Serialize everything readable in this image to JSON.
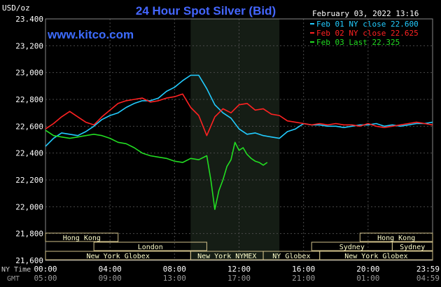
{
  "chart_data": {
    "type": "line",
    "title": "24 Hour Spot Silver (Bid)",
    "watermark": "www.kitco.com",
    "datetime": "February 03, 2022 13:16",
    "y_unit": "USD/oz",
    "ylim": [
      21.6,
      23.4
    ],
    "y_ticks": [
      "23.400",
      "23,200",
      "23,000",
      "22,800",
      "22,600",
      "22,400",
      "22,200",
      "22,000",
      "21,800",
      "21,600"
    ],
    "xlim": [
      0,
      24
    ],
    "x_ticks_ny": [
      "00:00",
      "04:00",
      "08:00",
      "12:00",
      "16:00",
      "20:00",
      "23:59"
    ],
    "x_ticks_gmt": [
      "05:00",
      "09:00",
      "13:00",
      "17:00",
      "21:00",
      "01:00",
      "04:59"
    ],
    "ny_time_label": "NY Time",
    "gmt_label": "GMT",
    "shaded_region_hours": [
      9,
      14.5
    ],
    "series": [
      {
        "name": "Feb 01 NY close 22.600",
        "color": "#22ccff",
        "x": [
          0,
          0.5,
          1,
          1.5,
          2,
          2.5,
          3,
          3.5,
          4,
          4.5,
          5,
          5.5,
          6,
          6.5,
          7,
          7.5,
          8,
          8.5,
          9,
          9.5,
          10,
          10.5,
          11,
          11.5,
          12,
          12.5,
          13,
          13.5,
          14,
          14.5,
          15,
          15.5,
          16,
          16.5,
          17,
          17.5,
          18,
          18.5,
          19,
          19.5,
          20,
          20.5,
          21,
          21.5,
          22,
          22.5,
          23,
          23.5,
          24
        ],
        "values": [
          22.45,
          22.51,
          22.55,
          22.54,
          22.53,
          22.56,
          22.6,
          22.65,
          22.68,
          22.7,
          22.74,
          22.77,
          22.79,
          22.79,
          22.81,
          22.86,
          22.89,
          22.94,
          22.98,
          22.98,
          22.88,
          22.76,
          22.7,
          22.66,
          22.58,
          22.54,
          22.55,
          22.53,
          22.52,
          22.51,
          22.56,
          22.58,
          22.62,
          22.61,
          22.61,
          22.6,
          22.6,
          22.59,
          22.6,
          22.61,
          22.61,
          22.62,
          22.6,
          22.61,
          22.6,
          22.61,
          22.62,
          22.62,
          22.63
        ]
      },
      {
        "name": "Feb 02 NY close 22.625",
        "color": "#ff2222",
        "x": [
          0,
          0.5,
          1,
          1.5,
          2,
          2.5,
          3,
          3.5,
          4,
          4.5,
          5,
          5.5,
          6,
          6.5,
          7,
          7.5,
          8,
          8.5,
          9,
          9.5,
          10,
          10.5,
          11,
          11.5,
          12,
          12.5,
          13,
          13.5,
          14,
          14.5,
          15,
          15.5,
          16,
          16.5,
          17,
          17.5,
          18,
          18.5,
          19,
          19.5,
          20,
          20.5,
          21,
          21.5,
          22,
          22.5,
          23,
          23.5,
          24
        ],
        "values": [
          22.58,
          22.62,
          22.67,
          22.71,
          22.67,
          22.63,
          22.61,
          22.67,
          22.72,
          22.77,
          22.79,
          22.8,
          22.81,
          22.78,
          22.79,
          22.81,
          22.82,
          22.84,
          22.74,
          22.68,
          22.53,
          22.67,
          22.73,
          22.7,
          22.76,
          22.77,
          22.72,
          22.73,
          22.69,
          22.68,
          22.64,
          22.63,
          22.62,
          22.61,
          22.62,
          22.61,
          22.62,
          22.61,
          22.61,
          22.6,
          22.62,
          22.6,
          22.59,
          22.6,
          22.61,
          22.62,
          22.63,
          22.62,
          22.61
        ]
      },
      {
        "name": "Feb 03 Last 22.325",
        "color": "#22dd22",
        "x": [
          0,
          0.5,
          1,
          1.5,
          2,
          2.5,
          3,
          3.5,
          4,
          4.5,
          5,
          5.5,
          6,
          6.5,
          7,
          7.5,
          8,
          8.5,
          9,
          9.5,
          10,
          10.25,
          10.5,
          10.75,
          11,
          11.25,
          11.5,
          11.75,
          12,
          12.25,
          12.5,
          12.75,
          13,
          13.25,
          13.5,
          13.75
        ],
        "values": [
          22.57,
          22.53,
          22.52,
          22.51,
          22.52,
          22.53,
          22.54,
          22.53,
          22.51,
          22.48,
          22.47,
          22.44,
          22.4,
          22.38,
          22.37,
          22.36,
          22.34,
          22.33,
          22.36,
          22.35,
          22.38,
          22.2,
          21.98,
          22.12,
          22.2,
          22.3,
          22.35,
          22.48,
          22.42,
          22.44,
          22.39,
          22.36,
          22.34,
          22.33,
          22.31,
          22.33
        ]
      }
    ]
  },
  "market_bands": [
    {
      "label": "Hong Kong",
      "row": 0,
      "start": 0,
      "end": 4.5
    },
    {
      "label": "Hong Kong",
      "row": 0,
      "start": 19.5,
      "end": 24
    },
    {
      "label": "London",
      "row": 1,
      "start": 3,
      "end": 10
    },
    {
      "label": "Sydney",
      "row": 1,
      "start": 16.5,
      "end": 21.5
    },
    {
      "label": "Sydney",
      "row": 1,
      "start": 21.5,
      "end": 24
    },
    {
      "label": "New York Globex",
      "row": 2,
      "start": 0,
      "end": 9
    },
    {
      "label": "New York NYMEX",
      "row": 2,
      "start": 9,
      "end": 13.5
    },
    {
      "label": "NY Globex",
      "row": 2,
      "start": 13.5,
      "end": 17
    },
    {
      "label": "New York Globex",
      "row": 2,
      "start": 17,
      "end": 24
    }
  ]
}
